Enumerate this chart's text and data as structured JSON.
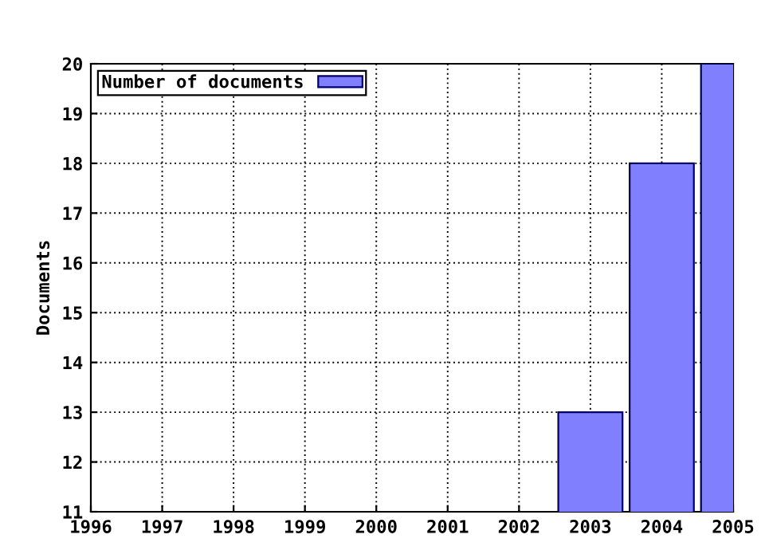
{
  "chart_data": {
    "type": "bar",
    "ylabel": "Documents",
    "x": [
      2003,
      2004,
      2005
    ],
    "series": [
      {
        "name": "Number of documents",
        "color": "#8080ff",
        "values": [
          13,
          18,
          20
        ]
      }
    ],
    "xlim": [
      1996,
      2005
    ],
    "xticks": [
      1996,
      1997,
      1998,
      1999,
      2000,
      2001,
      2002,
      2003,
      2004,
      2005
    ],
    "ylim": [
      11,
      20
    ],
    "yticks": [
      11,
      12,
      13,
      14,
      15,
      16,
      17,
      18,
      19,
      20
    ],
    "grid": true,
    "legend": "top left"
  }
}
